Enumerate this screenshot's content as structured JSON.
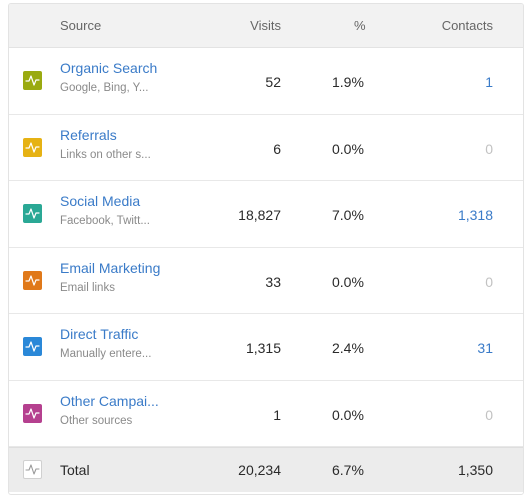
{
  "header": {
    "source": "Source",
    "visits": "Visits",
    "percent": "%",
    "contacts": "Contacts"
  },
  "rows": [
    {
      "name": "Organic Search",
      "sub": "Google, Bing, Y...",
      "visits": "52",
      "percent": "1.9%",
      "contacts": "1",
      "contacts_linked": true,
      "color": "#9aaa10",
      "icon": "pulse-icon"
    },
    {
      "name": "Referrals",
      "sub": "Links on other s...",
      "visits": "6",
      "percent": "0.0%",
      "contacts": "0",
      "contacts_linked": false,
      "color": "#e6b214",
      "icon": "pulse-icon"
    },
    {
      "name": "Social Media",
      "sub": "Facebook, Twitt...",
      "visits": "18,827",
      "percent": "7.0%",
      "contacts": "1,318",
      "contacts_linked": true,
      "color": "#2aa895",
      "icon": "pulse-icon"
    },
    {
      "name": "Email Marketing",
      "sub": "Email links",
      "visits": "33",
      "percent": "0.0%",
      "contacts": "0",
      "contacts_linked": false,
      "color": "#e0791a",
      "icon": "pulse-icon"
    },
    {
      "name": "Direct Traffic",
      "sub": "Manually entere...",
      "visits": "1,315",
      "percent": "2.4%",
      "contacts": "31",
      "contacts_linked": true,
      "color": "#2a88d8",
      "icon": "pulse-icon"
    },
    {
      "name": "Other Campai...",
      "sub": "Other sources",
      "visits": "1",
      "percent": "0.0%",
      "contacts": "0",
      "contacts_linked": false,
      "color": "#b5408f",
      "icon": "pulse-icon"
    }
  ],
  "total": {
    "label": "Total",
    "visits": "20,234",
    "percent": "6.7%",
    "contacts": "1,350",
    "icon": "pulse-icon"
  }
}
